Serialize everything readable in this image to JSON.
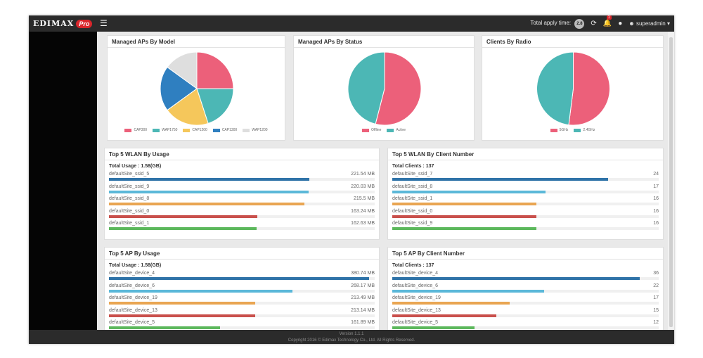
{
  "header": {
    "logo_text": "EDIMAX",
    "logo_pro": "Pro",
    "apply_time_label": "Total apply time:",
    "apply_time_value": "2.8",
    "notification_count": "1",
    "user_name": "superadmin"
  },
  "icons": {
    "menu": "hamburger-menu-icon",
    "refresh": "refresh-icon",
    "notification": "bell-icon",
    "language": "globe-icon",
    "user": "user-icon",
    "user_caret": "caret-down-icon"
  },
  "colors": {
    "red": "#ec607a",
    "teal": "#4cb7b5",
    "yellow": "#f5c75b",
    "blue": "#2f7fc0",
    "gray": "#dedede",
    "bar_blue": "#2f73a8",
    "bar_cyan": "#5bb8d9",
    "bar_orange": "#e9a552",
    "bar_red": "#c9504c",
    "bar_green": "#5cb85c"
  },
  "pies": [
    {
      "title": "Managed APs By Model",
      "legend": [
        "CAP300",
        "WAP1750",
        "CAP1200",
        "CAP1300",
        "WAP1200"
      ],
      "values": [
        25,
        20,
        20,
        20,
        15
      ],
      "colors": [
        "#ec607a",
        "#4cb7b5",
        "#f5c75b",
        "#2f7fc0",
        "#dedede"
      ]
    },
    {
      "title": "Managed APs By Status",
      "legend": [
        "Offline",
        "Active"
      ],
      "values": [
        54,
        46
      ],
      "colors": [
        "#ec607a",
        "#4cb7b5"
      ]
    },
    {
      "title": "Clients By Radio",
      "legend": [
        "5GHz",
        "2.4GHz"
      ],
      "values": [
        52,
        48
      ],
      "colors": [
        "#ec607a",
        "#4cb7b5"
      ]
    }
  ],
  "wlan_usage": {
    "title": "Top 5 WLAN By Usage",
    "total": "Total Usage : 1.58(GB)",
    "rows": [
      {
        "name": "defaultSite_ssid_5",
        "value": "221.54 MB",
        "fraction": 0.755,
        "color": "#2f73a8"
      },
      {
        "name": "defaultSite_ssid_9",
        "value": "220.03 MB",
        "fraction": 0.75,
        "color": "#5bb8d9"
      },
      {
        "name": "defaultSite_ssid_8",
        "value": "215.5 MB",
        "fraction": 0.735,
        "color": "#e9a552"
      },
      {
        "name": "defaultSite_ssid_0",
        "value": "163.24 MB",
        "fraction": 0.557,
        "color": "#c9504c"
      },
      {
        "name": "defaultSite_ssid_1",
        "value": "162.63 MB",
        "fraction": 0.555,
        "color": "#5cb85c"
      }
    ]
  },
  "wlan_clients": {
    "title": "Top 5 WLAN By Client Number",
    "total": "Total Clients : 137",
    "rows": [
      {
        "name": "defaultSite_ssid_7",
        "value": "24",
        "fraction": 0.81,
        "color": "#2f73a8"
      },
      {
        "name": "defaultSite_ssid_8",
        "value": "17",
        "fraction": 0.574,
        "color": "#5bb8d9"
      },
      {
        "name": "defaultSite_ssid_1",
        "value": "16",
        "fraction": 0.54,
        "color": "#e9a552"
      },
      {
        "name": "defaultSite_ssid_0",
        "value": "16",
        "fraction": 0.54,
        "color": "#c9504c"
      },
      {
        "name": "defaultSite_ssid_9",
        "value": "16",
        "fraction": 0.54,
        "color": "#5cb85c"
      }
    ]
  },
  "ap_usage": {
    "title": "Top 5 AP By Usage",
    "total": "Total Usage : 1.58(GB)",
    "rows": [
      {
        "name": "defaultSite_device_4",
        "value": "380.74 MB",
        "fraction": 0.98,
        "color": "#2f73a8"
      },
      {
        "name": "defaultSite_device_6",
        "value": "268.17 MB",
        "fraction": 0.69,
        "color": "#5bb8d9"
      },
      {
        "name": "defaultSite_device_19",
        "value": "213.49 MB",
        "fraction": 0.55,
        "color": "#e9a552"
      },
      {
        "name": "defaultSite_device_13",
        "value": "213.14 MB",
        "fraction": 0.549,
        "color": "#c9504c"
      },
      {
        "name": "defaultSite_device_5",
        "value": "161.89 MB",
        "fraction": 0.417,
        "color": "#5cb85c"
      }
    ]
  },
  "ap_clients": {
    "title": "Top 5 AP By Client Number",
    "total": "Total Clients : 137",
    "rows": [
      {
        "name": "defaultSite_device_4",
        "value": "36",
        "fraction": 0.93,
        "color": "#2f73a8"
      },
      {
        "name": "defaultSite_device_6",
        "value": "22",
        "fraction": 0.57,
        "color": "#5bb8d9"
      },
      {
        "name": "defaultSite_device_19",
        "value": "17",
        "fraction": 0.44,
        "color": "#e9a552"
      },
      {
        "name": "defaultSite_device_13",
        "value": "15",
        "fraction": 0.39,
        "color": "#c9504c"
      },
      {
        "name": "defaultSite_device_5",
        "value": "12",
        "fraction": 0.31,
        "color": "#5cb85c"
      }
    ]
  },
  "footer": {
    "version": "Version 1.1.1",
    "copyright": "Copyright 2016 © Edimax Technology Co., Ltd. All Rights Reserved."
  }
}
